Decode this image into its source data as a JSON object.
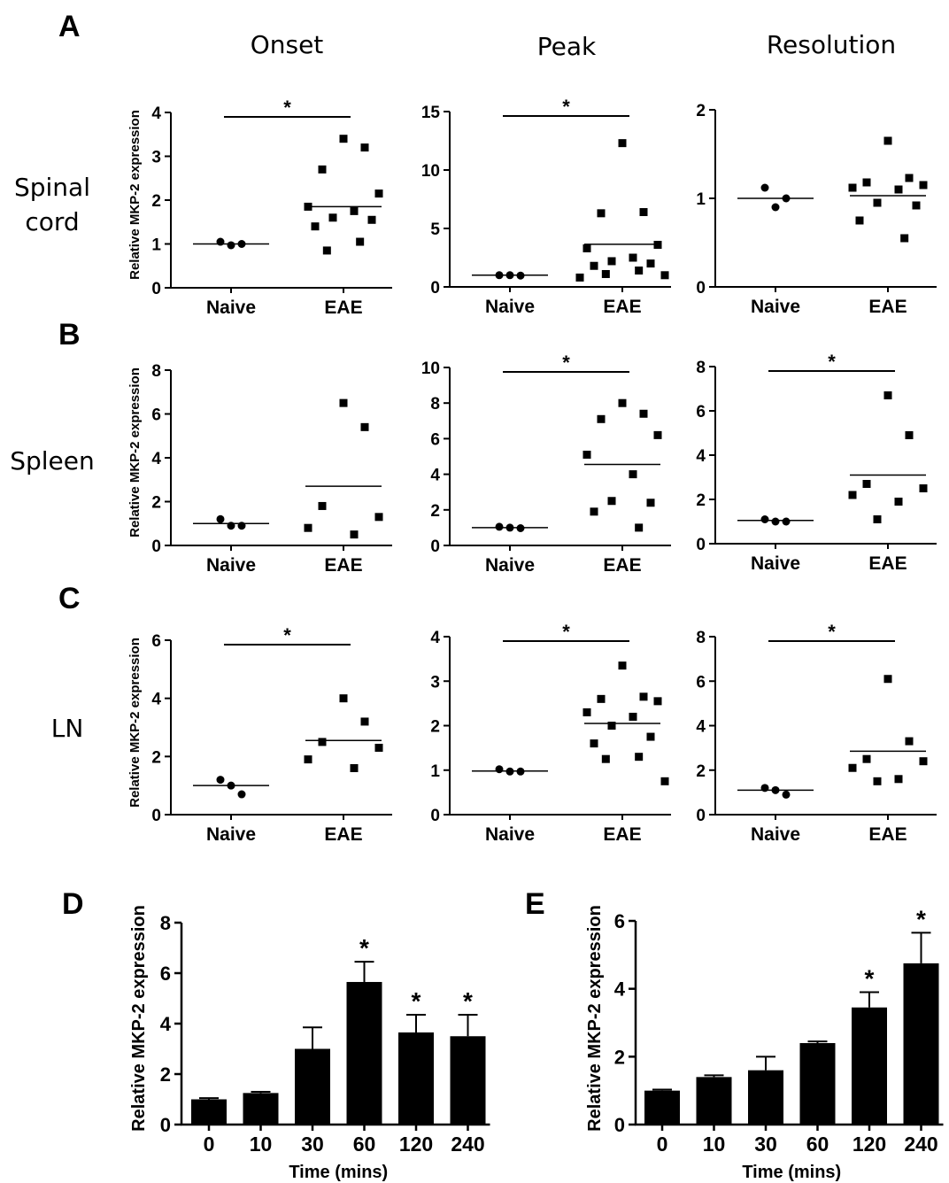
{
  "panel_letters": [
    "A",
    "B",
    "C",
    "D",
    "E"
  ],
  "column_headers": [
    "Onset",
    "Peak",
    "Resolution"
  ],
  "row_headers": [
    "Spinal\ncord",
    "Spleen",
    "LN"
  ],
  "scatter_ylabel": "Relative MKP-2 expression",
  "categories": [
    "Naive",
    "EAE"
  ],
  "significance_mark": "*",
  "chart_data": [
    {
      "id": "A-onset",
      "panel": "A",
      "type": "scatter",
      "ylim": [
        0,
        4
      ],
      "yticks": [
        "0",
        "1",
        "2",
        "3",
        "4"
      ],
      "categories": [
        "Naive",
        "EAE"
      ],
      "naive": [
        1.05,
        0.97,
        1.0
      ],
      "eae": [
        3.4,
        3.2,
        2.7,
        2.15,
        1.85,
        1.75,
        1.6,
        1.55,
        1.4,
        1.05,
        0.85
      ],
      "naive_mean": 1.0,
      "eae_mean": 1.85,
      "significant": true,
      "ylabel": "Relative MKP-2 expression"
    },
    {
      "id": "A-peak",
      "panel": "A",
      "type": "scatter",
      "ylim": [
        0,
        15
      ],
      "yticks": [
        "0",
        "5",
        "10",
        "15"
      ],
      "categories": [
        "Naive",
        "EAE"
      ],
      "naive": [
        1.0,
        1.0,
        0.97
      ],
      "eae": [
        12.3,
        6.4,
        6.3,
        3.6,
        3.3,
        2.5,
        2.2,
        2.0,
        1.8,
        1.4,
        1.1,
        1.0,
        0.8
      ],
      "naive_mean": 1.0,
      "eae_mean": 3.65,
      "significant": true
    },
    {
      "id": "A-resolution",
      "panel": "A",
      "type": "scatter",
      "ylim": [
        0,
        2
      ],
      "yticks": [
        "0",
        "1",
        "2"
      ],
      "categories": [
        "Naive",
        "EAE"
      ],
      "naive": [
        1.12,
        0.9,
        1.0
      ],
      "eae": [
        1.65,
        1.23,
        1.18,
        1.15,
        1.12,
        1.1,
        0.95,
        0.92,
        0.75,
        0.55
      ],
      "naive_mean": 1.0,
      "eae_mean": 1.03,
      "significant": false
    },
    {
      "id": "B-onset",
      "panel": "B",
      "type": "scatter",
      "ylim": [
        0,
        8
      ],
      "yticks": [
        "0",
        "2",
        "4",
        "6",
        "8"
      ],
      "categories": [
        "Naive",
        "EAE"
      ],
      "naive": [
        1.2,
        0.9,
        0.9
      ],
      "eae": [
        6.5,
        5.4,
        1.8,
        1.3,
        0.8,
        0.5
      ],
      "naive_mean": 1.0,
      "eae_mean": 2.7,
      "significant": false,
      "ylabel": "Relative MKP-2 expression"
    },
    {
      "id": "B-peak",
      "panel": "B",
      "type": "scatter",
      "ylim": [
        0,
        10
      ],
      "yticks": [
        "0",
        "2",
        "4",
        "6",
        "8",
        "10"
      ],
      "categories": [
        "Naive",
        "EAE"
      ],
      "naive": [
        1.05,
        1.0,
        0.97
      ],
      "eae": [
        8.0,
        7.4,
        7.1,
        6.2,
        5.1,
        4.0,
        2.5,
        2.4,
        1.9,
        1.0
      ],
      "naive_mean": 1.0,
      "eae_mean": 4.55,
      "significant": true
    },
    {
      "id": "B-resolution",
      "panel": "B",
      "type": "scatter",
      "ylim": [
        0,
        8
      ],
      "yticks": [
        "0",
        "2",
        "4",
        "6",
        "8"
      ],
      "categories": [
        "Naive",
        "EAE"
      ],
      "naive": [
        1.1,
        1.0,
        1.0
      ],
      "eae": [
        6.7,
        4.9,
        2.7,
        2.5,
        2.2,
        1.9,
        1.1
      ],
      "naive_mean": 1.05,
      "eae_mean": 3.1,
      "significant": true
    },
    {
      "id": "C-onset",
      "panel": "C",
      "type": "scatter",
      "ylim": [
        0,
        6
      ],
      "yticks": [
        "0",
        "2",
        "4",
        "6"
      ],
      "categories": [
        "Naive",
        "EAE"
      ],
      "naive": [
        1.2,
        1.0,
        0.7
      ],
      "eae": [
        4.0,
        3.2,
        2.5,
        2.3,
        1.9,
        1.6
      ],
      "naive_mean": 1.0,
      "eae_mean": 2.55,
      "significant": true,
      "ylabel": "Relative MKP-2 expression"
    },
    {
      "id": "C-peak",
      "panel": "C",
      "type": "scatter",
      "ylim": [
        0,
        4
      ],
      "yticks": [
        "0",
        "1",
        "2",
        "3",
        "4"
      ],
      "categories": [
        "Naive",
        "EAE"
      ],
      "naive": [
        1.02,
        0.97,
        0.97
      ],
      "eae": [
        3.35,
        2.65,
        2.6,
        2.55,
        2.3,
        2.2,
        2.0,
        1.75,
        1.6,
        1.3,
        1.25,
        0.75
      ],
      "naive_mean": 0.98,
      "eae_mean": 2.05,
      "significant": true
    },
    {
      "id": "C-resolution",
      "panel": "C",
      "type": "scatter",
      "ylim": [
        0,
        8
      ],
      "yticks": [
        "0",
        "2",
        "4",
        "6",
        "8"
      ],
      "categories": [
        "Naive",
        "EAE"
      ],
      "naive": [
        1.2,
        1.1,
        0.9
      ],
      "eae": [
        6.1,
        3.3,
        2.5,
        2.4,
        2.1,
        1.6,
        1.5
      ],
      "naive_mean": 1.1,
      "eae_mean": 2.85,
      "significant": true
    },
    {
      "id": "D",
      "panel": "D",
      "type": "bar",
      "categories": [
        "0",
        "10",
        "30",
        "60",
        "120",
        "240"
      ],
      "values": [
        1.0,
        1.25,
        3.0,
        5.65,
        3.65,
        3.5
      ],
      "errors": [
        0.05,
        0.05,
        0.85,
        0.8,
        0.7,
        0.85
      ],
      "significant": [
        false,
        false,
        false,
        true,
        true,
        true
      ],
      "ylim": [
        0,
        8
      ],
      "yticks": [
        "0",
        "2",
        "4",
        "6",
        "8"
      ],
      "xlabel": "Time (mins)",
      "ylabel": "Relative MKP-2 expression"
    },
    {
      "id": "E",
      "panel": "E",
      "type": "bar",
      "categories": [
        "0",
        "10",
        "30",
        "60",
        "120",
        "240"
      ],
      "values": [
        1.0,
        1.4,
        1.6,
        2.4,
        3.45,
        4.75
      ],
      "errors": [
        0.03,
        0.05,
        0.4,
        0.05,
        0.45,
        0.9
      ],
      "significant": [
        false,
        false,
        false,
        false,
        true,
        true
      ],
      "ylim": [
        0,
        6
      ],
      "yticks": [
        "0",
        "2",
        "4",
        "6"
      ],
      "xlabel": "Time (mins)",
      "ylabel": "Relative MKP-2 expression"
    }
  ]
}
